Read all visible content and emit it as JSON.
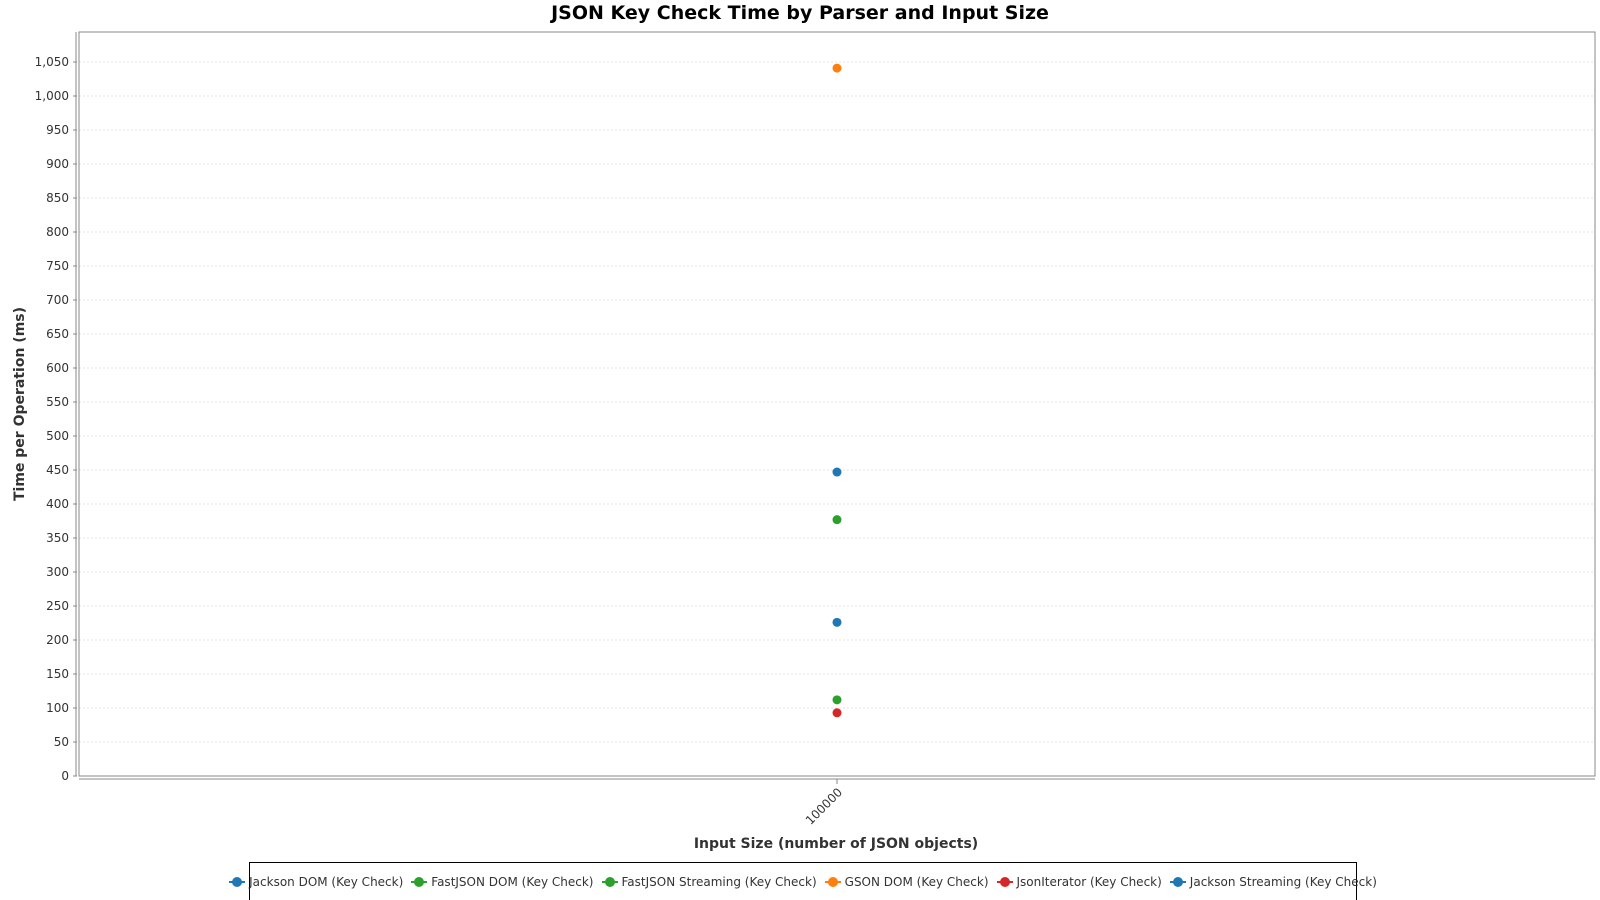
{
  "chart_data": {
    "type": "scatter",
    "title": "JSON Key Check Time by Parser and Input Size",
    "xlabel": "Input Size (number of JSON objects)",
    "ylabel": "Time per Operation (ms)",
    "categories": [
      "100000"
    ],
    "ylim": [
      0,
      1050
    ],
    "yticks": [
      0,
      50,
      100,
      150,
      200,
      250,
      300,
      350,
      400,
      450,
      500,
      550,
      600,
      650,
      700,
      750,
      800,
      850,
      900,
      950,
      1000,
      1050
    ],
    "ytick_labels": [
      "0",
      "50",
      "100",
      "150",
      "200",
      "250",
      "300",
      "350",
      "400",
      "450",
      "500",
      "550",
      "600",
      "650",
      "700",
      "750",
      "800",
      "850",
      "900",
      "950",
      "1,000",
      "1,050"
    ],
    "grid": true,
    "legend_position": "bottom",
    "series": [
      {
        "name": "Jackson DOM (Key Check)",
        "color": "#1f77b4",
        "values": [
          447
        ]
      },
      {
        "name": "FastJSON DOM (Key Check)",
        "color": "#2ca02c",
        "values": [
          377
        ]
      },
      {
        "name": "FastJSON Streaming (Key Check)",
        "color": "#2ca02c",
        "values": [
          112
        ]
      },
      {
        "name": "GSON DOM (Key Check)",
        "color": "#ff7f0e",
        "values": [
          1041
        ]
      },
      {
        "name": "JsonIterator (Key Check)",
        "color": "#d62728",
        "values": [
          93
        ]
      },
      {
        "name": "Jackson Streaming (Key Check)",
        "color": "#1f77b4",
        "values": [
          226
        ]
      }
    ]
  }
}
